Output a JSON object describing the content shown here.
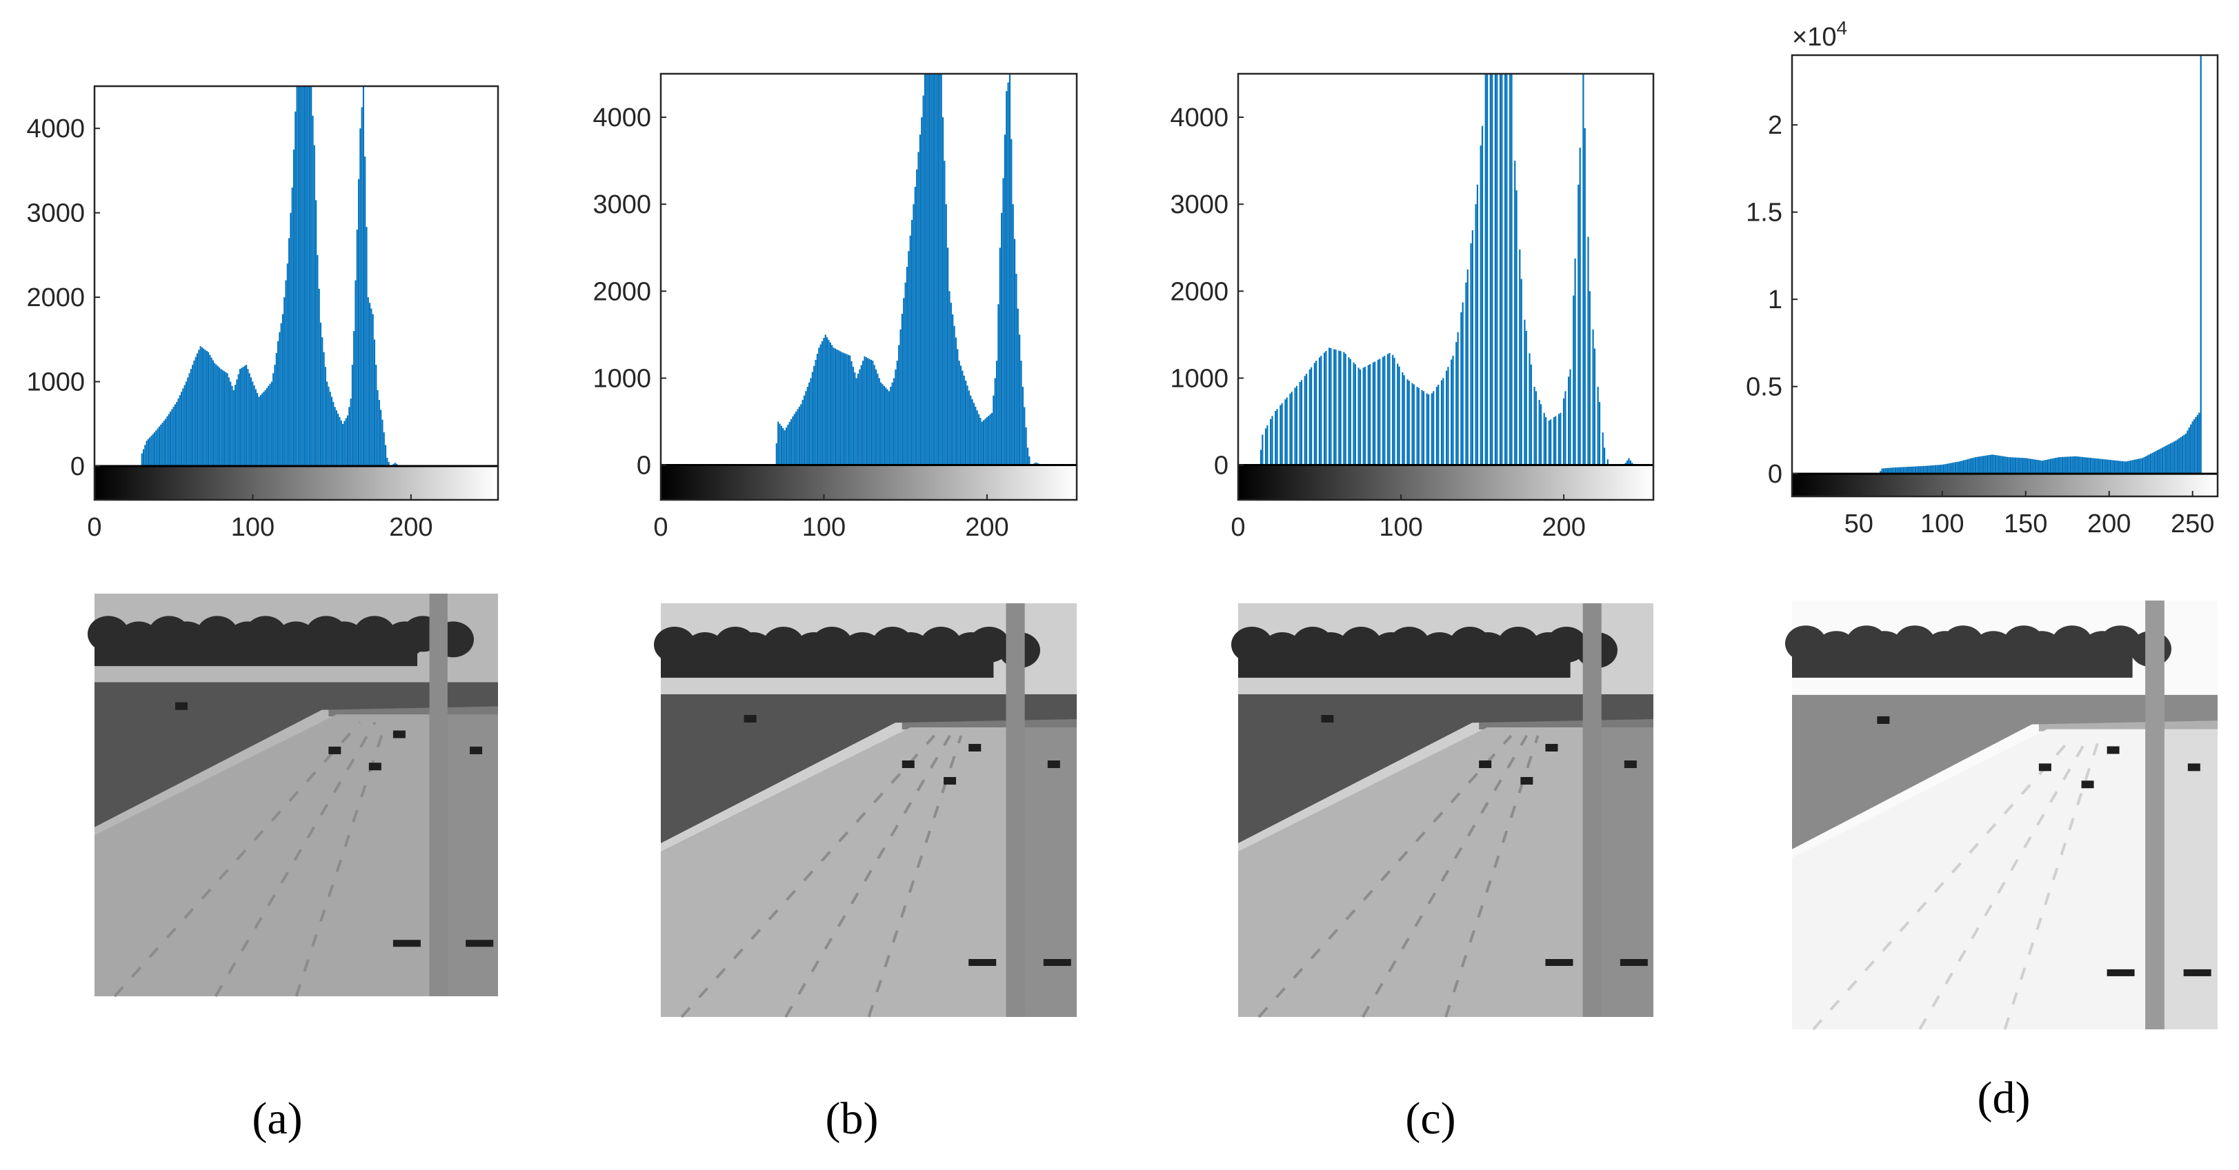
{
  "chart_data": [
    {
      "type": "bar",
      "subfigure": "a",
      "caption": "(a)",
      "xlim": [
        0,
        255
      ],
      "ylim": [
        -400,
        4500
      ],
      "yticks": [
        0,
        1000,
        2000,
        3000,
        4000
      ],
      "xticks": [
        0,
        100,
        200
      ],
      "exponent_label": "",
      "bar_color": "#0072BD",
      "histogram_points": [
        [
          0,
          0
        ],
        [
          29,
          0
        ],
        [
          30,
          150
        ],
        [
          33,
          300
        ],
        [
          38,
          400
        ],
        [
          45,
          560
        ],
        [
          52,
          760
        ],
        [
          58,
          1000
        ],
        [
          63,
          1250
        ],
        [
          67,
          1420
        ],
        [
          72,
          1350
        ],
        [
          76,
          1220
        ],
        [
          80,
          1150
        ],
        [
          84,
          1100
        ],
        [
          88,
          900
        ],
        [
          92,
          1150
        ],
        [
          96,
          1200
        ],
        [
          100,
          1000
        ],
        [
          104,
          820
        ],
        [
          108,
          900
        ],
        [
          112,
          1000
        ],
        [
          114,
          1200
        ],
        [
          116,
          1480
        ],
        [
          119,
          1800
        ],
        [
          122,
          2400
        ],
        [
          125,
          3300
        ],
        [
          127,
          4200
        ],
        [
          128,
          4500
        ],
        [
          137,
          4500
        ],
        [
          139,
          3800
        ],
        [
          141,
          2500
        ],
        [
          143,
          1700
        ],
        [
          147,
          1000
        ],
        [
          152,
          700
        ],
        [
          157,
          500
        ],
        [
          160,
          600
        ],
        [
          162,
          800
        ],
        [
          164,
          1600
        ],
        [
          166,
          2800
        ],
        [
          168,
          4000
        ],
        [
          170,
          4500
        ],
        [
          173,
          2000
        ],
        [
          176,
          1800
        ],
        [
          179,
          900
        ],
        [
          182,
          550
        ],
        [
          185,
          100
        ],
        [
          187,
          0
        ],
        [
          190,
          40
        ],
        [
          193,
          0
        ],
        [
          255,
          0
        ]
      ],
      "photo": "highway-original"
    },
    {
      "type": "bar",
      "subfigure": "b",
      "caption": "(b)",
      "xlim": [
        0,
        255
      ],
      "ylim": [
        -400,
        4500
      ],
      "yticks": [
        0,
        1000,
        2000,
        3000,
        4000
      ],
      "xticks": [
        0,
        100,
        200
      ],
      "exponent_label": "",
      "bar_color": "#0072BD",
      "histogram_points": [
        [
          0,
          0
        ],
        [
          70,
          0
        ],
        [
          72,
          500
        ],
        [
          76,
          400
        ],
        [
          81,
          560
        ],
        [
          86,
          700
        ],
        [
          92,
          1000
        ],
        [
          97,
          1350
        ],
        [
          101,
          1500
        ],
        [
          106,
          1350
        ],
        [
          111,
          1300
        ],
        [
          116,
          1260
        ],
        [
          120,
          1000
        ],
        [
          125,
          1250
        ],
        [
          130,
          1200
        ],
        [
          135,
          950
        ],
        [
          140,
          850
        ],
        [
          143,
          1000
        ],
        [
          145,
          1200
        ],
        [
          150,
          2100
        ],
        [
          155,
          3000
        ],
        [
          160,
          4000
        ],
        [
          162,
          4500
        ],
        [
          172,
          4500
        ],
        [
          174,
          3500
        ],
        [
          177,
          2000
        ],
        [
          183,
          1200
        ],
        [
          190,
          800
        ],
        [
          197,
          500
        ],
        [
          203,
          600
        ],
        [
          206,
          1200
        ],
        [
          208,
          2500
        ],
        [
          210,
          3300
        ],
        [
          212,
          4300
        ],
        [
          214,
          4500
        ],
        [
          216,
          3000
        ],
        [
          219,
          1800
        ],
        [
          222,
          900
        ],
        [
          225,
          200
        ],
        [
          227,
          0
        ],
        [
          230,
          30
        ],
        [
          234,
          0
        ],
        [
          255,
          0
        ]
      ],
      "photo": "highway-transformed-1"
    },
    {
      "type": "bar",
      "subfigure": "c",
      "caption": "(c)",
      "xlim": [
        0,
        255
      ],
      "ylim": [
        -400,
        4500
      ],
      "yticks": [
        0,
        1000,
        2000,
        3000,
        4000
      ],
      "xticks": [
        0,
        100,
        200
      ],
      "exponent_label": "",
      "bar_color": "#0072BD",
      "histogram_points": [
        [
          0,
          0
        ],
        [
          13,
          0
        ],
        [
          15,
          350
        ],
        [
          22,
          600
        ],
        [
          31,
          800
        ],
        [
          40,
          1000
        ],
        [
          48,
          1200
        ],
        [
          56,
          1350
        ],
        [
          65,
          1300
        ],
        [
          75,
          1100
        ],
        [
          85,
          1200
        ],
        [
          94,
          1300
        ],
        [
          103,
          1000
        ],
        [
          110,
          900
        ],
        [
          118,
          800
        ],
        [
          126,
          1000
        ],
        [
          133,
          1300
        ],
        [
          140,
          2100
        ],
        [
          146,
          3000
        ],
        [
          150,
          3900
        ],
        [
          152,
          4500
        ],
        [
          168,
          4500
        ],
        [
          170,
          3500
        ],
        [
          175,
          1800
        ],
        [
          182,
          900
        ],
        [
          190,
          500
        ],
        [
          198,
          600
        ],
        [
          204,
          1100
        ],
        [
          208,
          2800
        ],
        [
          212,
          4500
        ],
        [
          216,
          2000
        ],
        [
          221,
          900
        ],
        [
          225,
          200
        ],
        [
          228,
          0
        ],
        [
          237,
          0
        ],
        [
          240,
          80
        ],
        [
          243,
          0
        ],
        [
          255,
          0
        ]
      ],
      "photo": "highway-transformed-2"
    },
    {
      "type": "bar",
      "subfigure": "d",
      "caption": "(d)",
      "xlim": [
        10,
        265
      ],
      "ylim": [
        -1300,
        24000
      ],
      "yticks": [
        0,
        0.5,
        1,
        1.5,
        2
      ],
      "ytick_values": [
        0,
        5000,
        10000,
        15000,
        20000
      ],
      "xticks": [
        50,
        100,
        150,
        200,
        250
      ],
      "exponent_label": "×10",
      "exponent_power": "4",
      "bar_color": "#0072BD",
      "histogram_points": [
        [
          10,
          0
        ],
        [
          62,
          0
        ],
        [
          64,
          300
        ],
        [
          70,
          350
        ],
        [
          80,
          400
        ],
        [
          90,
          450
        ],
        [
          100,
          520
        ],
        [
          110,
          700
        ],
        [
          120,
          950
        ],
        [
          130,
          1100
        ],
        [
          140,
          950
        ],
        [
          150,
          900
        ],
        [
          160,
          750
        ],
        [
          170,
          950
        ],
        [
          180,
          1000
        ],
        [
          190,
          900
        ],
        [
          200,
          800
        ],
        [
          210,
          700
        ],
        [
          220,
          900
        ],
        [
          230,
          1400
        ],
        [
          240,
          1900
        ],
        [
          246,
          2300
        ],
        [
          250,
          3000
        ],
        [
          254,
          3500
        ],
        [
          255,
          24000
        ],
        [
          256,
          0
        ],
        [
          265,
          0
        ]
      ],
      "photo": "highway-brightened"
    }
  ]
}
